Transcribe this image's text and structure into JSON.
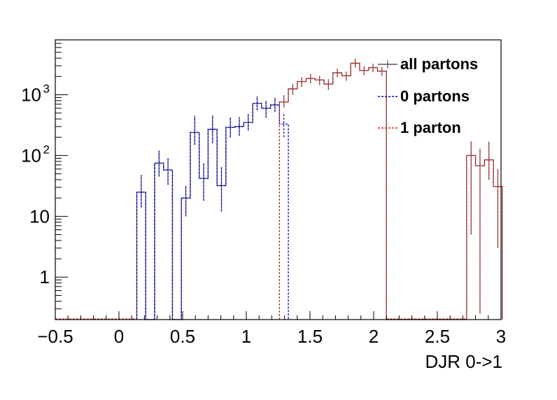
{
  "chart_data": {
    "type": "histogram",
    "title": "",
    "xlabel": "DJR 0->1",
    "ylabel": "",
    "xlim": [
      -0.5,
      3.0
    ],
    "ylim": [
      0.2,
      8000
    ],
    "y_scale": "log",
    "grid": false,
    "legend_position": "top-right",
    "x_ticks": [
      "-0.5",
      "0",
      "0.5",
      "1",
      "1.5",
      "2",
      "2.5",
      "3"
    ],
    "x_tick_values": [
      -0.5,
      0,
      0.5,
      1,
      1.5,
      2,
      2.5,
      3
    ],
    "y_ticks": [
      {
        "value": 1,
        "label": "1"
      },
      {
        "value": 10,
        "label": "10"
      },
      {
        "value": 100,
        "label": "10",
        "exp": "2"
      },
      {
        "value": 1000,
        "label": "10",
        "exp": "3"
      }
    ],
    "bin_width": 0.07,
    "series": [
      {
        "name": "all partons",
        "key": "all",
        "color": "#555555",
        "dash": "",
        "bins": [
          {
            "x": 0.14,
            "y": 25,
            "err": [
              14,
              48
            ]
          },
          {
            "x": 0.28,
            "y": 75,
            "err": [
              45,
              120
            ]
          },
          {
            "x": 0.35,
            "y": 58,
            "err": [
              33,
              90
            ]
          },
          {
            "x": 0.49,
            "y": 20,
            "err": [
              10,
              32
            ]
          },
          {
            "x": 0.56,
            "y": 240,
            "err": [
              150,
              450
            ]
          },
          {
            "x": 0.63,
            "y": 42,
            "err": [
              18,
              75
            ]
          },
          {
            "x": 0.7,
            "y": 270,
            "err": [
              160,
              460
            ]
          },
          {
            "x": 0.77,
            "y": 32,
            "err": [
              12,
              65
            ]
          },
          {
            "x": 0.84,
            "y": 290,
            "err": [
              200,
              420
            ]
          },
          {
            "x": 0.91,
            "y": 300,
            "err": [
              210,
              430
            ]
          },
          {
            "x": 0.98,
            "y": 350,
            "err": [
              260,
              480
            ]
          },
          {
            "x": 1.05,
            "y": 720,
            "err": [
              550,
              950
            ]
          },
          {
            "x": 1.12,
            "y": 600,
            "err": [
              420,
              800
            ]
          },
          {
            "x": 1.19,
            "y": 680,
            "err": [
              520,
              900
            ]
          },
          {
            "x": 1.26,
            "y": 760,
            "err": [
              620,
              980
            ]
          },
          {
            "x": 1.33,
            "y": 1250,
            "err": [
              1000,
              1500
            ]
          },
          {
            "x": 1.4,
            "y": 1650,
            "err": [
              1350,
              1950
            ]
          },
          {
            "x": 1.47,
            "y": 1850,
            "err": [
              1550,
              2200
            ]
          },
          {
            "x": 1.54,
            "y": 1750,
            "err": [
              1450,
              2050
            ]
          },
          {
            "x": 1.61,
            "y": 1500,
            "err": [
              1200,
              1800
            ]
          },
          {
            "x": 1.68,
            "y": 2300,
            "err": [
              1950,
              2700
            ]
          },
          {
            "x": 1.75,
            "y": 2050,
            "err": [
              1700,
              2400
            ]
          },
          {
            "x": 1.82,
            "y": 3300,
            "err": [
              2800,
              3900
            ]
          },
          {
            "x": 1.89,
            "y": 2500,
            "err": [
              2100,
              2950
            ]
          },
          {
            "x": 1.96,
            "y": 2800,
            "err": [
              2350,
              3250
            ]
          },
          {
            "x": 2.03,
            "y": 2450,
            "err": [
              2050,
              2850
            ]
          },
          {
            "x": 2.73,
            "y": 100,
            "err": [
              5,
              170
            ]
          },
          {
            "x": 2.8,
            "y": 68,
            "err": [
              0.25,
              130
            ]
          },
          {
            "x": 2.87,
            "y": 85,
            "err": [
              40,
              170
            ]
          },
          {
            "x": 2.94,
            "y": 31,
            "err": [
              3,
              60
            ]
          }
        ]
      },
      {
        "name": "0 partons",
        "key": "zero",
        "color": "#0000cc",
        "dash": "3,2",
        "bins": [
          {
            "x": 0.14,
            "y": 25,
            "err": [
              14,
              48
            ]
          },
          {
            "x": 0.28,
            "y": 75,
            "err": [
              45,
              120
            ]
          },
          {
            "x": 0.35,
            "y": 58,
            "err": [
              33,
              90
            ]
          },
          {
            "x": 0.49,
            "y": 20,
            "err": [
              10,
              32
            ]
          },
          {
            "x": 0.56,
            "y": 240,
            "err": [
              150,
              450
            ]
          },
          {
            "x": 0.63,
            "y": 42,
            "err": [
              18,
              75
            ]
          },
          {
            "x": 0.7,
            "y": 270,
            "err": [
              160,
              460
            ]
          },
          {
            "x": 0.77,
            "y": 32,
            "err": [
              12,
              65
            ]
          },
          {
            "x": 0.84,
            "y": 290,
            "err": [
              200,
              420
            ]
          },
          {
            "x": 0.91,
            "y": 300,
            "err": [
              210,
              430
            ]
          },
          {
            "x": 0.98,
            "y": 350,
            "err": [
              260,
              480
            ]
          },
          {
            "x": 1.05,
            "y": 720,
            "err": [
              550,
              950
            ]
          },
          {
            "x": 1.12,
            "y": 600,
            "err": [
              420,
              800
            ]
          },
          {
            "x": 1.19,
            "y": 680,
            "err": [
              520,
              900
            ]
          },
          {
            "x": 1.26,
            "y": 330,
            "err": [
              200,
              500
            ]
          }
        ]
      },
      {
        "name": "1 parton",
        "key": "one",
        "color": "#cc2222",
        "dash": "3,2",
        "bins": [
          {
            "x": 1.26,
            "y": 760,
            "err": [
              620,
              980
            ]
          },
          {
            "x": 1.33,
            "y": 1250,
            "err": [
              1000,
              1500
            ]
          },
          {
            "x": 1.4,
            "y": 1650,
            "err": [
              1350,
              1950
            ]
          },
          {
            "x": 1.47,
            "y": 1850,
            "err": [
              1550,
              2200
            ]
          },
          {
            "x": 1.54,
            "y": 1750,
            "err": [
              1450,
              2050
            ]
          },
          {
            "x": 1.61,
            "y": 1500,
            "err": [
              1200,
              1800
            ]
          },
          {
            "x": 1.68,
            "y": 2300,
            "err": [
              1950,
              2700
            ]
          },
          {
            "x": 1.75,
            "y": 2050,
            "err": [
              1700,
              2400
            ]
          },
          {
            "x": 1.82,
            "y": 3300,
            "err": [
              2800,
              3900
            ]
          },
          {
            "x": 1.89,
            "y": 2500,
            "err": [
              2100,
              2950
            ]
          },
          {
            "x": 1.96,
            "y": 2800,
            "err": [
              2350,
              3250
            ]
          },
          {
            "x": 2.03,
            "y": 2450,
            "err": [
              2050,
              2850
            ]
          },
          {
            "x": 2.73,
            "y": 100,
            "err": [
              5,
              170
            ]
          },
          {
            "x": 2.8,
            "y": 68,
            "err": [
              0.25,
              130
            ]
          },
          {
            "x": 2.87,
            "y": 85,
            "err": [
              40,
              170
            ]
          },
          {
            "x": 2.94,
            "y": 31,
            "err": [
              3,
              60
            ]
          }
        ]
      }
    ],
    "legend": [
      {
        "label": "all partons",
        "color": "#555555",
        "dash": ""
      },
      {
        "label": "0 partons",
        "color": "#0000cc",
        "dash": "3,2"
      },
      {
        "label": "1 parton",
        "color": "#cc2222",
        "dash": "3,2"
      }
    ]
  }
}
